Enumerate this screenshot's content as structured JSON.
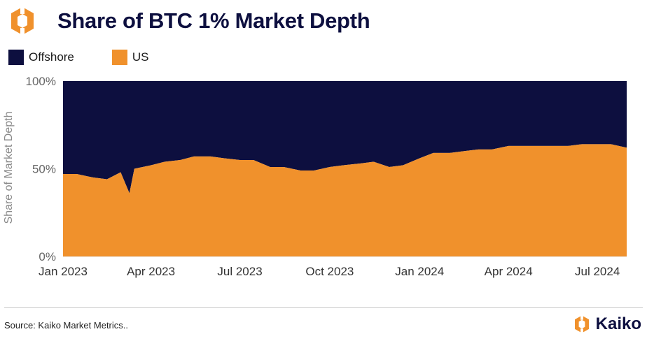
{
  "header": {
    "title": "Share of BTC 1% Market Depth"
  },
  "footer": {
    "source": "Source: Kaiko Market Metrics..",
    "brand": "Kaiko"
  },
  "colors": {
    "offshore": "#0d0f3f",
    "us": "#f0912c",
    "axis_text": "#666666",
    "grid": "#d9d9d9"
  },
  "icons": {
    "top_logo": "kaiko-logo-icon",
    "brand_logo": "kaiko-logo-icon"
  },
  "chart_data": {
    "type": "area",
    "stacked": true,
    "percent": true,
    "title": "Share of BTC 1% Market Depth",
    "xlabel": "",
    "ylabel": "Share of Market Depth",
    "ylim": [
      0,
      100
    ],
    "yticks": [
      "0%",
      "50%",
      "100%"
    ],
    "xticks": [
      "Jan 2023",
      "Apr 2023",
      "Jul 2023",
      "Oct 2023",
      "Jan 2024",
      "Apr 2024",
      "Jul 2024"
    ],
    "xlim": [
      "2023-01-01",
      "2024-07-31"
    ],
    "legend_position": "top-left",
    "grid": "horizontal",
    "x": [
      "2023-01-01",
      "2023-01-15",
      "2023-02-01",
      "2023-02-15",
      "2023-03-01",
      "2023-03-10",
      "2023-03-15",
      "2023-04-01",
      "2023-04-15",
      "2023-05-01",
      "2023-05-15",
      "2023-06-01",
      "2023-06-15",
      "2023-07-01",
      "2023-07-15",
      "2023-08-01",
      "2023-08-15",
      "2023-09-01",
      "2023-09-15",
      "2023-10-01",
      "2023-10-15",
      "2023-11-01",
      "2023-11-15",
      "2023-12-01",
      "2023-12-15",
      "2024-01-01",
      "2024-01-15",
      "2024-02-01",
      "2024-02-15",
      "2024-03-01",
      "2024-03-15",
      "2024-04-01",
      "2024-04-15",
      "2024-05-01",
      "2024-05-15",
      "2024-06-01",
      "2024-06-15",
      "2024-07-01",
      "2024-07-15",
      "2024-07-31"
    ],
    "series": [
      {
        "name": "Offshore",
        "values": [
          53,
          53,
          55,
          56,
          52,
          64,
          50,
          48,
          46,
          45,
          43,
          43,
          44,
          45,
          45,
          49,
          49,
          51,
          51,
          49,
          48,
          47,
          46,
          49,
          48,
          44,
          41,
          41,
          40,
          39,
          39,
          37,
          37,
          37,
          37,
          37,
          36,
          36,
          36,
          38
        ]
      },
      {
        "name": "US",
        "values": [
          47,
          47,
          45,
          44,
          48,
          36,
          50,
          52,
          54,
          55,
          57,
          57,
          56,
          55,
          55,
          51,
          51,
          49,
          49,
          51,
          52,
          53,
          54,
          51,
          52,
          56,
          59,
          59,
          60,
          61,
          61,
          63,
          63,
          63,
          63,
          63,
          64,
          64,
          64,
          62
        ]
      }
    ]
  }
}
